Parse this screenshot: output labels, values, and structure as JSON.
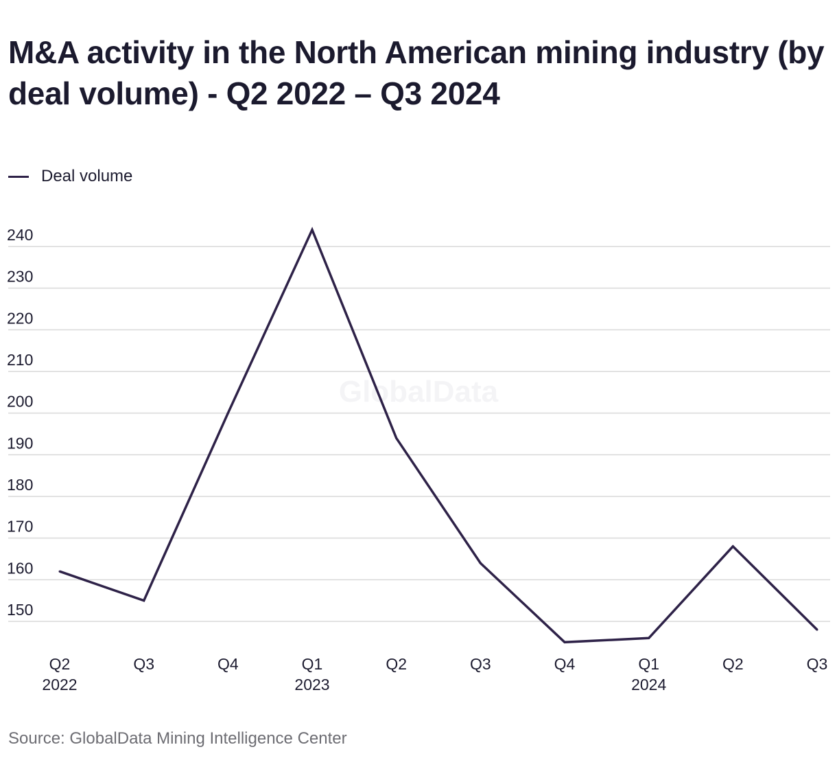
{
  "chart_data": {
    "type": "line",
    "title": "M&A activity in the North American mining industry (by deal volume) - Q2 2022 – Q3 2024",
    "xlabel": "",
    "ylabel": "",
    "categories": [
      "Q2 2022",
      "Q3 2022",
      "Q4 2022",
      "Q1 2023",
      "Q2 2023",
      "Q3 2023",
      "Q4 2023",
      "Q1 2024",
      "Q2 2024",
      "Q3 2024"
    ],
    "x_tick_labels": [
      [
        "Q2",
        "2022"
      ],
      [
        "Q3",
        ""
      ],
      [
        "Q4",
        ""
      ],
      [
        "Q1",
        "2023"
      ],
      [
        "Q2",
        ""
      ],
      [
        "Q3",
        ""
      ],
      [
        "Q4",
        ""
      ],
      [
        "Q1",
        "2024"
      ],
      [
        "Q2",
        ""
      ],
      [
        "Q3",
        ""
      ]
    ],
    "series": [
      {
        "name": "Deal volume",
        "color": "#2e2248",
        "values": [
          162,
          155,
          200,
          244,
          194,
          164,
          145,
          146,
          168,
          148
        ]
      }
    ],
    "ylim": [
      144,
      246
    ],
    "yticks": [
      150,
      160,
      170,
      180,
      190,
      200,
      210,
      220,
      230,
      240
    ],
    "grid": true,
    "legend_position": "top-left"
  },
  "source": "Source: GlobalData Mining Intelligence Center",
  "watermark": "GlobalData",
  "colors": {
    "line": "#2e2248",
    "grid": "#d9d9d9",
    "text": "#1b1a2e",
    "source_text": "#6c6c72"
  }
}
